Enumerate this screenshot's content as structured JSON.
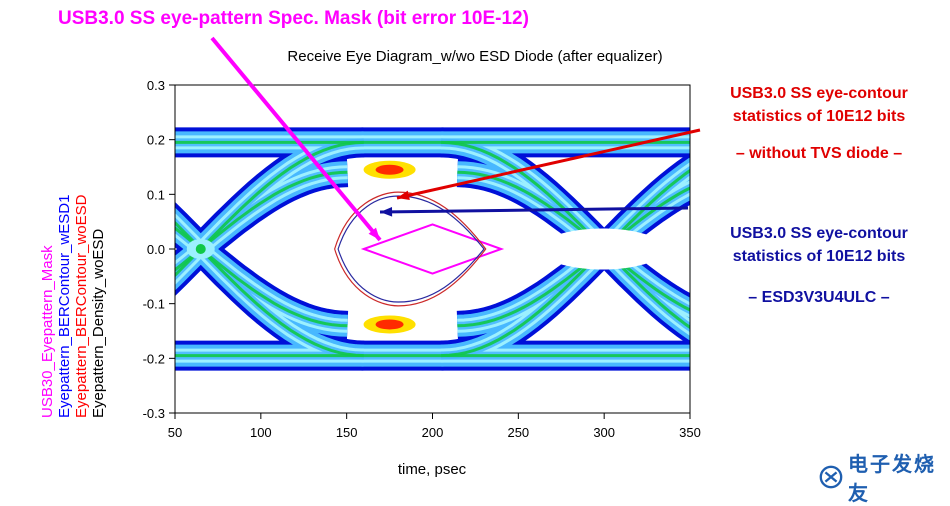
{
  "header": {
    "mask_title": "USB3.0 SS eye-pattern Spec. Mask (bit error 10E-12)"
  },
  "colors": {
    "mask": "#ff00ff",
    "contour_with": "#2a2aa0",
    "contour_without": "#cc2a2a",
    "annotation_red": "#e00000",
    "annotation_blue": "#1010a0",
    "density_outer": "#0010d8",
    "density_mid": "#48b8ff",
    "density_inner": "#9cf0ff",
    "density_core": "#10c848",
    "density_hot": "#ff2a00"
  },
  "chart_data": {
    "type": "eye-diagram",
    "title": "Receive Eye Diagram_w/wo ESD Diode (after equalizer)",
    "xlabel": "time, psec",
    "xlim": [
      50,
      350
    ],
    "ylim": [
      -0.3,
      0.3
    ],
    "xticks": [
      50,
      100,
      150,
      200,
      250,
      300,
      350
    ],
    "xtick_labels": [
      "50",
      "100",
      "150",
      "200",
      "250",
      "300",
      "350"
    ],
    "yticks": [
      0.3,
      0.2,
      0.1,
      0.0,
      -0.1,
      -0.2,
      -0.3
    ],
    "ytick_labels": [
      "0.3",
      "0.2",
      "0.1",
      "0.0",
      "-0.1",
      "-0.2",
      "-0.3"
    ],
    "legend_labels": [
      {
        "text": "USB30_Eyepattern_Mask",
        "color": "#ff00ff"
      },
      {
        "text": "Eyepattern_BERContour_wESD1",
        "color": "#0000ff"
      },
      {
        "text": "Eyepattern_BERContour_woESD",
        "color": "#ff0000"
      },
      {
        "text": "Eyepattern_Density_woESD",
        "color": "#000000"
      }
    ],
    "series": [
      {
        "name": "USB30_Eyepattern_Mask",
        "shape": "diamond",
        "x": [
          160,
          200,
          240,
          200,
          160
        ],
        "y": [
          0.0,
          0.045,
          0.0,
          -0.045,
          0.0
        ]
      },
      {
        "name": "Eyepattern_BERContour_woESD",
        "shape": "eye",
        "x": [
          143,
          180,
          231,
          180,
          143
        ],
        "y": [
          0.0,
          0.104,
          0.0,
          -0.104,
          0.0
        ]
      },
      {
        "name": "Eyepattern_BERContour_wESD1",
        "shape": "eye",
        "x": [
          145,
          180,
          230,
          180,
          145
        ],
        "y": [
          0.0,
          0.097,
          0.0,
          -0.097,
          0.0
        ]
      }
    ],
    "density": {
      "rails": [
        0.195,
        -0.195
      ],
      "crossings_x": [
        65,
        300
      ],
      "hotspots": [
        {
          "x": 175,
          "y": 0.145
        },
        {
          "x": 175,
          "y": -0.138
        }
      ]
    }
  },
  "annotations": {
    "without": {
      "line1": "USB3.0 SS eye-contour",
      "line2": "statistics of 10E12 bits",
      "line3": "– without TVS diode –"
    },
    "with": {
      "line1": "USB3.0 SS eye-contour",
      "line2": "statistics of 10E12 bits",
      "line3": "– ESD3V3U4ULC –"
    }
  },
  "watermark": {
    "icon": "logo-icon",
    "text": "电子发烧友"
  }
}
